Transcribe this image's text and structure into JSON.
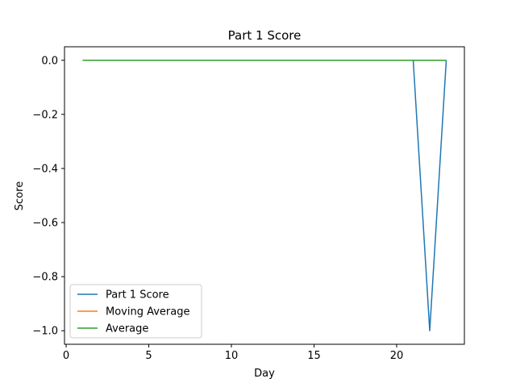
{
  "chart_data": {
    "type": "line",
    "title": "Part 1 Score",
    "xlabel": "Day",
    "ylabel": "Score",
    "xlim": [
      -0.1,
      24.1
    ],
    "ylim": [
      -1.05,
      0.05
    ],
    "xticks": [
      0,
      5,
      10,
      15,
      20
    ],
    "xtick_labels": [
      "0",
      "5",
      "10",
      "15",
      "20"
    ],
    "yticks": [
      0.0,
      -0.2,
      -0.4,
      -0.6,
      -0.8,
      -1.0
    ],
    "ytick_labels": [
      "0.0",
      "−0.2",
      "−0.4",
      "−0.6",
      "−0.8",
      "−1.0"
    ],
    "grid": false,
    "legend_position": "bottom-left",
    "x": [
      1,
      2,
      3,
      4,
      5,
      6,
      7,
      8,
      9,
      10,
      11,
      12,
      13,
      14,
      15,
      16,
      17,
      18,
      19,
      20,
      21,
      22,
      23
    ],
    "series": [
      {
        "name": "Part 1 Score",
        "color": "#1f77b4",
        "values": [
          0,
          0,
          0,
          0,
          0,
          0,
          0,
          0,
          0,
          0,
          0,
          0,
          0,
          0,
          0,
          0,
          0,
          0,
          0,
          0,
          0,
          -1,
          0
        ]
      },
      {
        "name": "Moving Average",
        "color": "#ff7f0e",
        "values": [
          0,
          0,
          0,
          0,
          0,
          0,
          0,
          0,
          0,
          0,
          0,
          0,
          0,
          0,
          0,
          0,
          0,
          0,
          0,
          0,
          0,
          0,
          0
        ]
      },
      {
        "name": "Average",
        "color": "#2ca02c",
        "values": [
          0,
          0,
          0,
          0,
          0,
          0,
          0,
          0,
          0,
          0,
          0,
          0,
          0,
          0,
          0,
          0,
          0,
          0,
          0,
          0,
          0,
          0,
          0
        ]
      }
    ]
  }
}
